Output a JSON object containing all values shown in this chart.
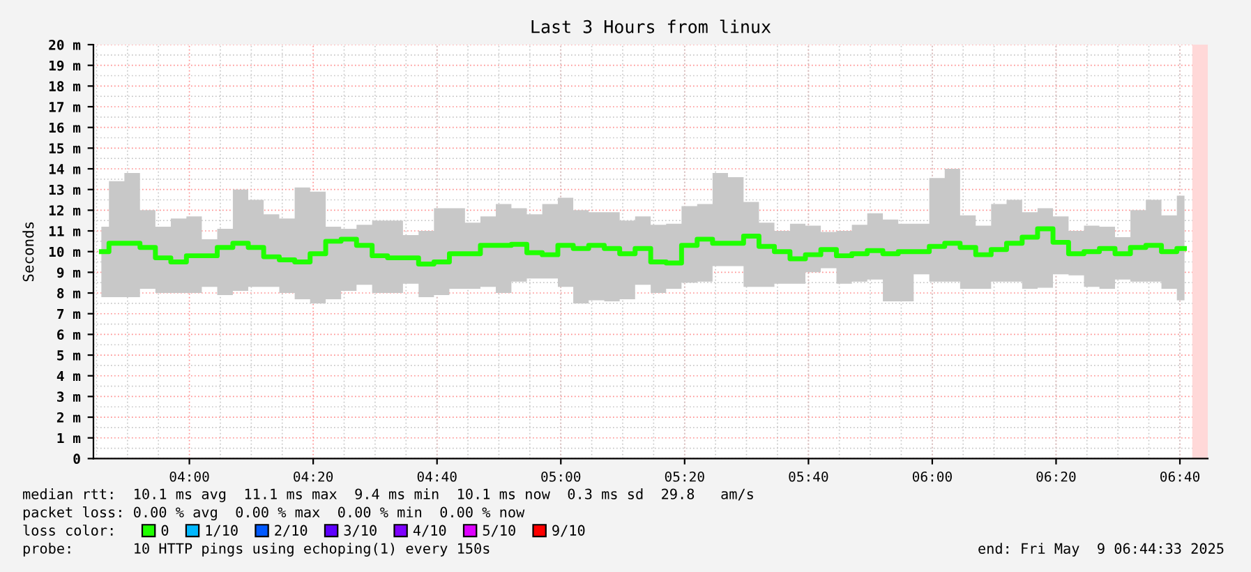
{
  "chart_data": {
    "type": "step",
    "title": "Last 3 Hours from linux",
    "ylabel": "Seconds",
    "x": [
      3.763,
      3.804,
      3.846,
      3.888,
      3.929,
      3.971,
      4.013,
      4.054,
      4.096,
      4.138,
      4.179,
      4.221,
      4.263,
      4.304,
      4.346,
      4.388,
      4.429,
      4.471,
      4.513,
      4.554,
      4.596,
      4.638,
      4.679,
      4.721,
      4.763,
      4.804,
      4.846,
      4.888,
      4.929,
      4.971,
      5.013,
      5.054,
      5.096,
      5.138,
      5.179,
      5.221,
      5.263,
      5.304,
      5.346,
      5.388,
      5.429,
      5.471,
      5.513,
      5.554,
      5.596,
      5.638,
      5.679,
      5.721,
      5.763,
      5.804,
      5.846,
      5.888,
      5.929,
      5.971,
      6.013,
      6.054,
      6.096,
      6.138,
      6.179,
      6.221,
      6.263,
      6.304,
      6.346,
      6.388,
      6.429,
      6.471,
      6.513,
      6.554,
      6.596,
      6.638,
      6.679
    ],
    "series": [
      {
        "name": "0",
        "color": "#20ff00",
        "values": [
          10.0,
          10.4,
          10.4,
          10.2,
          9.7,
          9.5,
          9.8,
          9.8,
          10.2,
          10.4,
          10.2,
          9.75,
          9.6,
          9.5,
          9.9,
          10.5,
          10.6,
          10.3,
          9.8,
          9.7,
          9.7,
          9.4,
          9.5,
          9.9,
          9.9,
          10.3,
          10.3,
          10.35,
          9.95,
          9.85,
          10.3,
          10.15,
          10.3,
          10.15,
          9.9,
          10.15,
          9.5,
          9.45,
          10.3,
          10.6,
          10.4,
          10.4,
          10.75,
          10.25,
          10.0,
          9.65,
          9.85,
          10.1,
          9.8,
          9.9,
          10.05,
          9.9,
          10.0,
          10.0,
          10.25,
          10.4,
          10.2,
          9.85,
          10.1,
          10.4,
          10.7,
          11.1,
          10.45,
          9.9,
          10.0,
          10.15,
          9.9,
          10.2,
          10.3,
          10.0,
          10.15
        ],
        "lower": [
          7.8,
          7.8,
          7.8,
          8.2,
          8.0,
          8.0,
          8.0,
          8.3,
          7.9,
          8.1,
          8.3,
          8.3,
          8.0,
          7.7,
          7.5,
          7.7,
          8.1,
          8.4,
          8.0,
          8.0,
          8.45,
          7.8,
          7.9,
          8.2,
          8.2,
          8.3,
          8.0,
          8.55,
          8.7,
          8.7,
          8.3,
          7.5,
          7.65,
          7.6,
          7.7,
          8.4,
          8.0,
          8.2,
          8.5,
          8.55,
          9.3,
          9.3,
          8.3,
          8.3,
          8.45,
          8.45,
          9.0,
          9.2,
          8.45,
          8.55,
          8.65,
          7.6,
          7.6,
          8.9,
          8.55,
          8.55,
          8.2,
          8.2,
          8.55,
          8.55,
          8.2,
          8.25,
          8.9,
          8.85,
          8.3,
          8.2,
          8.65,
          8.55,
          8.55,
          8.2,
          7.65
        ],
        "upper": [
          11.2,
          13.4,
          13.8,
          12.0,
          11.2,
          11.6,
          11.7,
          10.6,
          11.1,
          13.0,
          12.5,
          11.8,
          11.6,
          13.1,
          12.9,
          11.2,
          11.1,
          11.3,
          11.5,
          11.5,
          10.8,
          11.0,
          12.1,
          12.1,
          11.4,
          11.7,
          12.3,
          12.1,
          11.8,
          12.3,
          12.6,
          12.0,
          11.9,
          11.9,
          11.5,
          11.7,
          11.3,
          11.35,
          12.2,
          12.3,
          13.8,
          13.6,
          12.4,
          11.4,
          11.0,
          11.35,
          11.25,
          10.95,
          11.0,
          11.3,
          11.85,
          11.55,
          11.35,
          11.35,
          13.55,
          14.0,
          11.75,
          11.25,
          12.3,
          12.5,
          11.9,
          12.1,
          11.7,
          11.0,
          11.25,
          11.2,
          10.7,
          12.0,
          12.5,
          11.75,
          12.7
        ]
      },
      {
        "name": "1/10",
        "color": "#00b8ff",
        "values": [
          null,
          null,
          null,
          null,
          null,
          null,
          null,
          null,
          null,
          null,
          null,
          null,
          null,
          null,
          null,
          null,
          null,
          null,
          null,
          null,
          null,
          null,
          null,
          null,
          null,
          null,
          null,
          null,
          null,
          null,
          null,
          null,
          null,
          null,
          null,
          null,
          null,
          null,
          null,
          null,
          null,
          null,
          null,
          null,
          null,
          null,
          null,
          null,
          null,
          null,
          null,
          null,
          null,
          null,
          null,
          null,
          null,
          null,
          null,
          null,
          null,
          null,
          null,
          null,
          null,
          null,
          null,
          null,
          null,
          null,
          null
        ]
      },
      {
        "name": "2/10",
        "color": "#0059ff",
        "values": [
          null,
          null,
          null,
          null,
          null,
          null,
          null,
          null,
          null,
          null,
          null,
          null,
          null,
          null,
          null,
          null,
          null,
          null,
          null,
          null,
          null,
          null,
          null,
          null,
          null,
          null,
          null,
          null,
          null,
          null,
          null,
          null,
          null,
          null,
          null,
          null,
          null,
          null,
          null,
          null,
          null,
          null,
          null,
          null,
          null,
          null,
          null,
          null,
          null,
          null,
          null,
          null,
          null,
          null,
          null,
          null,
          null,
          null,
          null,
          null,
          null,
          null,
          null,
          null,
          null,
          null,
          null,
          null,
          null,
          null,
          null
        ]
      },
      {
        "name": "3/10",
        "color": "#5e00ff",
        "values": [
          null,
          null,
          null,
          null,
          null,
          null,
          null,
          null,
          null,
          null,
          null,
          null,
          null,
          null,
          null,
          null,
          null,
          null,
          null,
          null,
          null,
          null,
          null,
          null,
          null,
          null,
          null,
          null,
          null,
          null,
          null,
          null,
          null,
          null,
          null,
          null,
          null,
          null,
          null,
          null,
          null,
          null,
          null,
          null,
          null,
          null,
          null,
          null,
          null,
          null,
          null,
          null,
          null,
          null,
          null,
          null,
          null,
          null,
          null,
          null,
          null,
          null,
          null,
          null,
          null,
          null,
          null,
          null,
          null,
          null,
          null
        ]
      },
      {
        "name": "4/10",
        "color": "#7e00ff",
        "values": [
          null,
          null,
          null,
          null,
          null,
          null,
          null,
          null,
          null,
          null,
          null,
          null,
          null,
          null,
          null,
          null,
          null,
          null,
          null,
          null,
          null,
          null,
          null,
          null,
          null,
          null,
          null,
          null,
          null,
          null,
          null,
          null,
          null,
          null,
          null,
          null,
          null,
          null,
          null,
          null,
          null,
          null,
          null,
          null,
          null,
          null,
          null,
          null,
          null,
          null,
          null,
          null,
          null,
          null,
          null,
          null,
          null,
          null,
          null,
          null,
          null,
          null,
          null,
          null,
          null,
          null,
          null,
          null,
          null,
          null,
          null
        ]
      },
      {
        "name": "5/10",
        "color": "#dd00ff",
        "values": [
          null,
          null,
          null,
          null,
          null,
          null,
          null,
          null,
          null,
          null,
          null,
          null,
          null,
          null,
          null,
          null,
          null,
          null,
          null,
          null,
          null,
          null,
          null,
          null,
          null,
          null,
          null,
          null,
          null,
          null,
          null,
          null,
          null,
          null,
          null,
          null,
          null,
          null,
          null,
          null,
          null,
          null,
          null,
          null,
          null,
          null,
          null,
          null,
          null,
          null,
          null,
          null,
          null,
          null,
          null,
          null,
          null,
          null,
          null,
          null,
          null,
          null,
          null,
          null,
          null,
          null,
          null,
          null,
          null,
          null,
          null
        ]
      },
      {
        "name": "9/10",
        "color": "#ff0000",
        "values": [
          null,
          null,
          null,
          null,
          null,
          null,
          null,
          null,
          null,
          null,
          null,
          null,
          null,
          null,
          null,
          null,
          null,
          null,
          null,
          null,
          null,
          null,
          null,
          null,
          null,
          null,
          null,
          null,
          null,
          null,
          null,
          null,
          null,
          null,
          null,
          null,
          null,
          null,
          null,
          null,
          null,
          null,
          null,
          null,
          null,
          null,
          null,
          null,
          null,
          null,
          null,
          null,
          null,
          null,
          null,
          null,
          null,
          null,
          null,
          null,
          null,
          null,
          null,
          null,
          null,
          null,
          null,
          null,
          null,
          null,
          null
        ]
      }
    ],
    "legend_title": "loss color:",
    "legend": "bottom left",
    "xlim": [
      3.7417,
      6.7417
    ],
    "xticks": [
      {
        "value": 4,
        "label": "04:00"
      },
      {
        "value": 4.3333,
        "label": "04:20"
      },
      {
        "value": 4.6667,
        "label": "04:40"
      },
      {
        "value": 5,
        "label": "05:00"
      },
      {
        "value": 5.3333,
        "label": "05:20"
      },
      {
        "value": 5.6667,
        "label": "05:40"
      },
      {
        "value": 6,
        "label": "06:00"
      },
      {
        "value": 6.3333,
        "label": "06:20"
      },
      {
        "value": 6.6667,
        "label": "06:40"
      }
    ],
    "ylim": [
      0,
      20
    ],
    "yticks": [
      0,
      {
        "value": 1,
        "label": "1 m"
      },
      {
        "value": 2,
        "label": "2 m"
      },
      {
        "value": 3,
        "label": "3 m"
      },
      {
        "value": 4,
        "label": "4 m"
      },
      {
        "value": 5,
        "label": "5 m"
      },
      {
        "value": 6,
        "label": "6 m"
      },
      {
        "value": 7,
        "label": "7 m"
      },
      {
        "value": 8,
        "label": "8 m"
      },
      {
        "value": 9,
        "label": "9 m"
      },
      {
        "value": 10,
        "label": "10 m"
      },
      {
        "value": 11,
        "label": "11 m"
      },
      {
        "value": 12,
        "label": "12 m"
      },
      {
        "value": 13,
        "label": "13 m"
      },
      {
        "value": 14,
        "label": "14 m"
      },
      {
        "value": 15,
        "label": "15 m"
      },
      {
        "value": 16,
        "label": "16 m"
      },
      {
        "value": 17,
        "label": "17 m"
      },
      {
        "value": 18,
        "label": "18 m"
      },
      {
        "value": 19,
        "label": "19 m"
      },
      {
        "value": 20,
        "label": "20 m"
      }
    ],
    "grid": true,
    "bands": [
      {
        "axis": "x",
        "from": 6.7,
        "to": 6.7417,
        "color": "#ffd8d8"
      }
    ],
    "annotations": [
      "median rtt:  10.1 ms avg  11.1 ms max  9.4 ms min  10.1 ms now  0.3 ms sd  29.8   am/s",
      "packet loss: 0.00 % avg  0.00 % max  0.00 % min  0.00 % now",
      "probe:       10 HTTP pings using echoping(1) every 150s",
      "end: Fri May  9 06:44:33 2025"
    ]
  }
}
